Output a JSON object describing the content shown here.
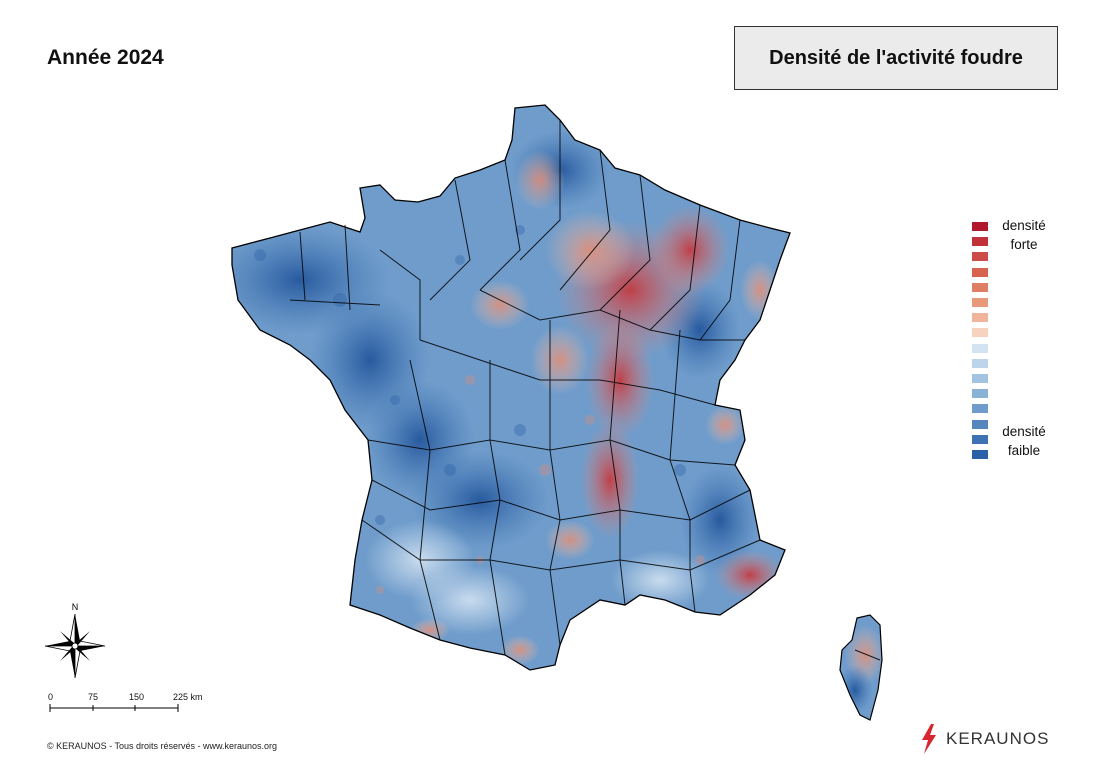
{
  "header": {
    "year_label": "Année 2024"
  },
  "title": "Densité de l'activité foudre",
  "legend": {
    "top_label_line1": "densité",
    "top_label_line2": "forte",
    "bottom_label_line1": "densité",
    "bottom_label_line2": "faible",
    "colors": [
      "#b2182b",
      "#c0313a",
      "#cc4a48",
      "#d6644f",
      "#df7e62",
      "#e8997c",
      "#f0b49c",
      "#f7d2bf",
      "#d3e3f2",
      "#bcd5ea",
      "#a3c4e1",
      "#8ab1d6",
      "#6f9ccb",
      "#5587be",
      "#3e72b2",
      "#2b5fa6"
    ]
  },
  "compass": {
    "north_label": "N"
  },
  "scale": {
    "ticks": [
      "0",
      "75",
      "150",
      "225 km"
    ]
  },
  "footer": {
    "copyright": "© KERAUNOS - Tous droits réservés - www.keraunos.org"
  },
  "brand": {
    "name": "KERAUNOS",
    "accent_color": "#d7262d"
  }
}
